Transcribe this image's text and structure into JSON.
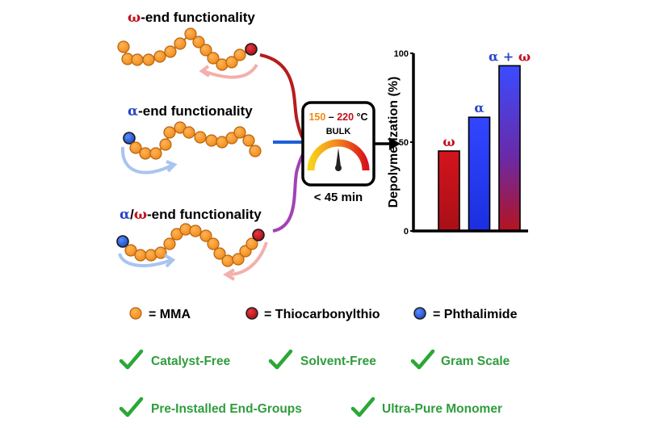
{
  "colors": {
    "mma": "#f6921e",
    "mma_stroke": "#c86a10",
    "thio": "#c1121c",
    "phthal": "#2a5fd1",
    "omega": "#c1121c",
    "alpha": "#2a46c8",
    "purple": "#9b3fb0",
    "check": "#2aa836",
    "feature_text": "#2f9d3d"
  },
  "chains": {
    "omega": {
      "symbol": "ω",
      "label": "-end functionality"
    },
    "alpha": {
      "symbol": "α",
      "label": "-end functionality"
    },
    "alpha_omega": {
      "symbol_a": "α",
      "slash": "/",
      "symbol_o": "ω",
      "label": "-end functionality"
    }
  },
  "reactor": {
    "temp_low": "150",
    "dash": " – ",
    "temp_high": "220",
    "unit": " °C",
    "mode": "BULK",
    "time": "< 45 min"
  },
  "chart_data": {
    "type": "bar",
    "categories": [
      "ω",
      "α",
      "α + ω"
    ],
    "values": [
      45,
      64,
      93
    ],
    "ylabel": "Depolymerization (%)",
    "ylim": [
      0,
      100
    ],
    "yticks": [
      "0",
      "50",
      "100"
    ],
    "bar_labels": [
      {
        "parts": [
          {
            "text": "ω",
            "color": "#c1121c"
          }
        ]
      },
      {
        "parts": [
          {
            "text": "α",
            "color": "#2a46c8"
          }
        ]
      },
      {
        "parts": [
          {
            "text": "α",
            "color": "#2a46c8"
          },
          {
            "text": " + ",
            "color": "#2a46c8"
          },
          {
            "text": "ω",
            "color": "#c1121c"
          }
        ]
      }
    ]
  },
  "legend": {
    "mma": "= MMA",
    "thio": "= Thiocarbonylthio",
    "phthal": "= Phthalimide"
  },
  "features": [
    "Catalyst-Free",
    "Solvent-Free",
    "Gram Scale",
    "Pre-Installed End-Groups",
    "Ultra-Pure Monomer"
  ]
}
